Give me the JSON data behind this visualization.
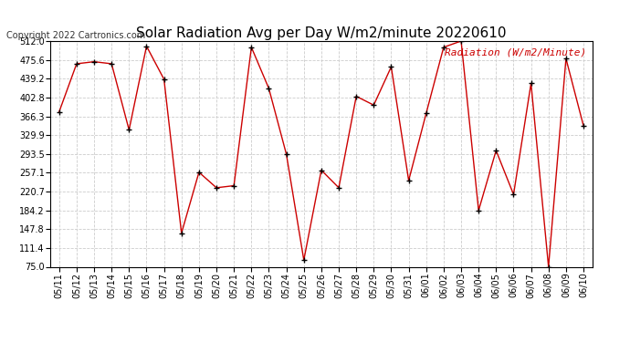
{
  "title": "Solar Radiation Avg per Day W/m2/minute 20220610",
  "copyright_text": "Copyright 2022 Cartronics.com",
  "legend_text": "Radiation (W/m2/Minute)",
  "dates": [
    "05/11",
    "05/12",
    "05/13",
    "05/14",
    "05/15",
    "05/16",
    "05/17",
    "05/18",
    "05/19",
    "05/20",
    "05/21",
    "05/22",
    "05/23",
    "05/24",
    "05/25",
    "05/26",
    "05/27",
    "05/28",
    "05/29",
    "05/30",
    "05/31",
    "06/01",
    "06/02",
    "06/03",
    "06/04",
    "06/05",
    "06/06",
    "06/07",
    "06/08",
    "06/09",
    "06/10"
  ],
  "values": [
    375,
    468,
    472,
    468,
    340,
    502,
    438,
    140,
    258,
    228,
    232,
    500,
    420,
    293,
    88,
    262,
    228,
    405,
    388,
    462,
    242,
    372,
    500,
    512,
    184,
    300,
    215,
    430,
    75,
    478,
    348
  ],
  "line_color": "#cc0000",
  "marker_color": "#000000",
  "grid_color": "#cccccc",
  "background_color": "#ffffff",
  "ylim": [
    75.0,
    512.0
  ],
  "yticks": [
    75.0,
    111.4,
    147.8,
    184.2,
    220.7,
    257.1,
    293.5,
    329.9,
    366.3,
    402.8,
    439.2,
    475.6,
    512.0
  ],
  "title_fontsize": 11,
  "axis_fontsize": 7,
  "legend_fontsize": 8,
  "copyright_fontsize": 7
}
